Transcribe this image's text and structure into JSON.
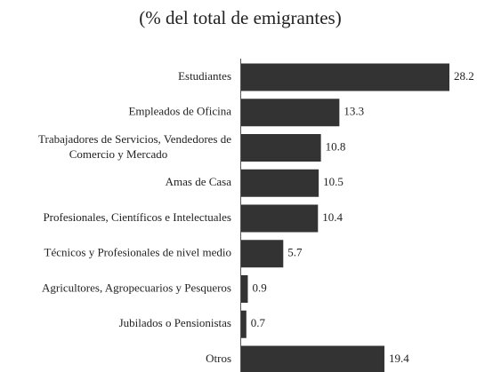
{
  "chart_data": {
    "type": "barh",
    "title": "(% del total de emigrantes)",
    "categories": [
      "Estudiantes",
      "Empleados de Oficina",
      "Trabajadores de Servicios, Vendedores de Comercio y Mercado",
      "Amas de Casa",
      "Profesionales, Científicos e Intelectuales",
      "Técnicos y Profesionales de nivel medio",
      "Agricultores, Agropecuarios y Pesqueros",
      "Jubilados o Pensionistas",
      "Otros"
    ],
    "values": [
      28.2,
      13.3,
      10.8,
      10.5,
      10.4,
      5.7,
      0.9,
      0.7,
      19.4
    ],
    "color": "#333333"
  }
}
